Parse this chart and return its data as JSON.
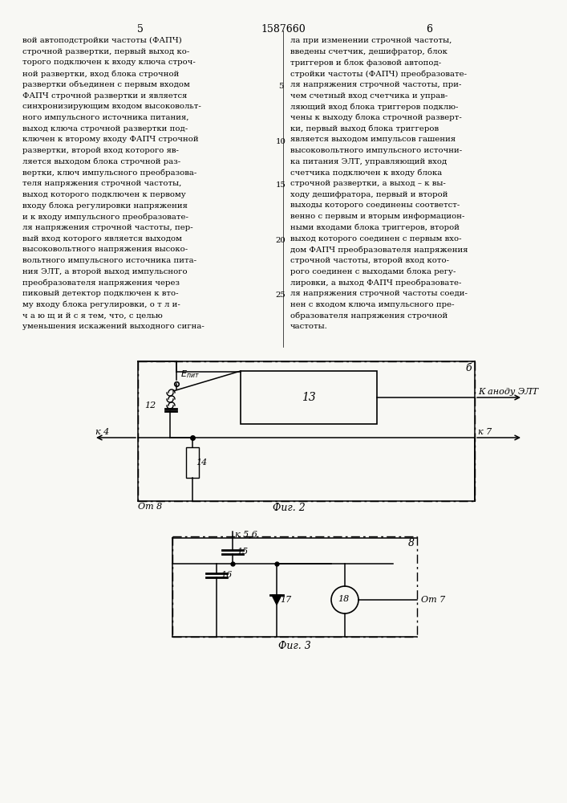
{
  "page_title": "1587660",
  "col_left_num": "5",
  "col_right_num": "6",
  "text_left": "вой автоподстройки частоты (ФАПЧ)\nстрочной развертки, первый выход ко-\nторого подключен к входу ключа строч-\nной развертки, вход блока строчной\nразвертки объединен с первым входом\nФАПЧ строчной развертки и является\nсинхронизирующим входом высоковольт-\nного импульсного источника питания,\nвыход ключа строчной развертки под-\nключен к второму входу ФАПЧ строчной\nразвертки, второй вход которого яв-\nляется выходом блока строчной раз-\nвертки, ключ импульсного преобразова-\nтеля напряжения строчной частоты,\nвыход которого подключен к первому\nвходу блока регулировки напряжения\nи к входу импульсного преобразовате-\nля напряжения строчной частоты, пер-\nвый вход которого является выходом\nвысоковольтного напряжения высоко-\nвольтного импульсного источника пита-\nния ЭЛТ, а второй выход импульсного\nпреобразователя напряжения через\nпиковый детектор подключен к вто-\nму входу блока регулировки, о т л и-\nч а ю щ и й с я тем, что, с целью\nуменьшения искажений выходного сигна-",
  "text_right": "ла при изменении строчной частоты,\nвведены счетчик, дешифратор, блок\nтриггеров и блок фазовой автопод-\nстройки частоты (ФАПЧ) преобразовате-\nля напряжения строчной частоты, при-\nчем счетный вход счетчика и управ-\nляющий вход блока триггеров подклю-\nчены к выходу блока строчной разверт-\nки, первый выход блока триггеров\nявляется выходом импульсов гашения\nвысоковольтного импульсного источни-\nка питания ЭЛТ, управляющий вход\nсчетчика подключен к входу блока\nстрочной развертки, а выход – к вы-\nходу дешифратора, первый и второй\nвыходы которого соединены соответст-\nвенно с первым и вторым информацион-\nными входами блока триггеров, второй\nвыход которого соединен с первым вхо-\nдом ФАПЧ преобразователя напряжения\nстрочной частоты, второй вход кото-\nрого соединен с выходами блока регу-\nлировки, а выход ФАПЧ преобразовате-\nля напряжения строчной частоты соеди-\nнен с входом ключа импульсного пре-\nобразователя напряжения строчной\nчастоты.",
  "fig2_label": "Фиг. 2",
  "fig3_label": "Фиг. 3",
  "bg_color": "#f8f8f4"
}
